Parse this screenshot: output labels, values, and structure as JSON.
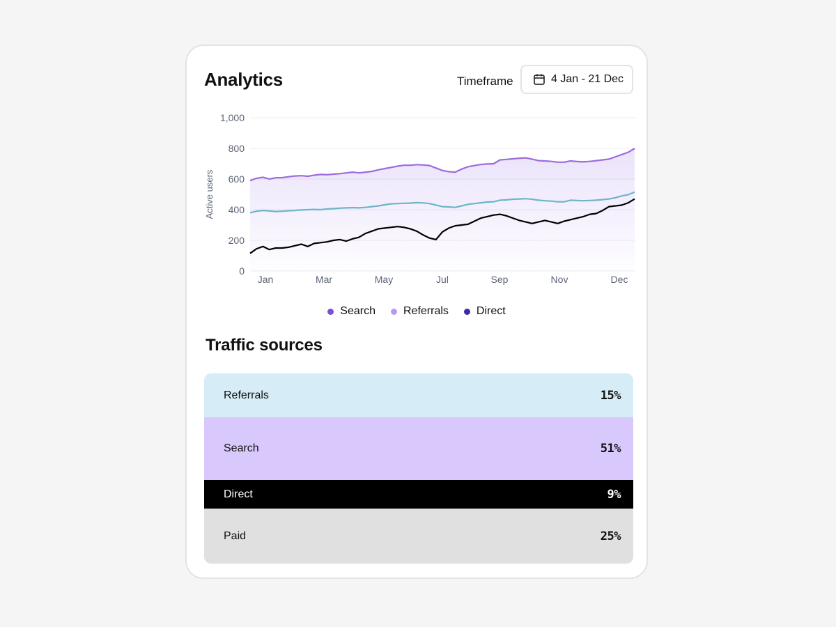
{
  "header": {
    "title": "Analytics",
    "timeframe_label": "Timeframe",
    "date_range": "4 Jan - 21 Dec",
    "calendar_icon": "calendar-icon"
  },
  "chart_data": {
    "type": "area",
    "ylabel": "Active users",
    "ylim": [
      0,
      1000
    ],
    "yticks": [
      "0",
      "200",
      "400",
      "600",
      "800",
      "1,000"
    ],
    "xticks": [
      "Jan",
      "Mar",
      "May",
      "Jul",
      "Sep",
      "Nov",
      "Dec"
    ],
    "grid": true,
    "legend_position": "bottom-center",
    "series": [
      {
        "name": "Search",
        "color": "#9b6cde",
        "filled": true,
        "values": [
          590,
          605,
          612,
          600,
          608,
          609,
          615,
          620,
          622,
          618,
          625,
          630,
          628,
          632,
          635,
          640,
          645,
          640,
          645,
          650,
          660,
          668,
          676,
          684,
          690,
          690,
          694,
          692,
          688,
          672,
          656,
          648,
          645,
          665,
          680,
          688,
          695,
          698,
          700,
          725,
          728,
          732,
          736,
          738,
          730,
          720,
          718,
          715,
          710,
          710,
          718,
          714,
          712,
          715,
          720,
          725,
          730,
          745,
          760,
          775,
          800
        ]
      },
      {
        "name": "Referrals",
        "color": "#6db5c8",
        "filled": false,
        "values": [
          380,
          390,
          395,
          392,
          388,
          390,
          393,
          395,
          398,
          400,
          402,
          400,
          405,
          407,
          410,
          412,
          413,
          412,
          415,
          420,
          425,
          432,
          438,
          440,
          442,
          443,
          446,
          444,
          440,
          430,
          420,
          418,
          415,
          425,
          435,
          440,
          445,
          450,
          452,
          462,
          464,
          468,
          470,
          472,
          468,
          462,
          458,
          456,
          452,
          452,
          462,
          460,
          458,
          460,
          462,
          466,
          470,
          478,
          490,
          498,
          515
        ]
      },
      {
        "name": "Direct",
        "color": "#000000",
        "filled": false,
        "values": [
          115,
          145,
          160,
          140,
          150,
          150,
          155,
          165,
          175,
          160,
          180,
          185,
          190,
          200,
          205,
          195,
          210,
          220,
          245,
          260,
          275,
          280,
          285,
          290,
          285,
          275,
          260,
          235,
          215,
          205,
          255,
          280,
          295,
          300,
          305,
          325,
          345,
          355,
          365,
          370,
          360,
          345,
          330,
          320,
          310,
          320,
          330,
          320,
          310,
          325,
          335,
          345,
          355,
          370,
          375,
          395,
          420,
          425,
          430,
          445,
          470
        ]
      }
    ]
  },
  "legend": [
    {
      "label": "Search",
      "color": "#7b4fd6"
    },
    {
      "label": "Referrals",
      "color": "#b79af0"
    },
    {
      "label": "Direct",
      "color": "#3d2ba0"
    }
  ],
  "traffic_sources": {
    "title": "Traffic sources",
    "rows": [
      {
        "label": "Referrals",
        "percent": "15%",
        "bg": "#d6ecf6",
        "fg": "#111111"
      },
      {
        "label": "Search",
        "percent": "51%",
        "bg": "#d9c8fb",
        "fg": "#111111"
      },
      {
        "label": "Direct",
        "percent": "9%",
        "bg": "#000000",
        "fg": "#ffffff"
      },
      {
        "label": "Paid",
        "percent": "25%",
        "bg": "#e0e0e0",
        "fg": "#111111"
      }
    ]
  }
}
